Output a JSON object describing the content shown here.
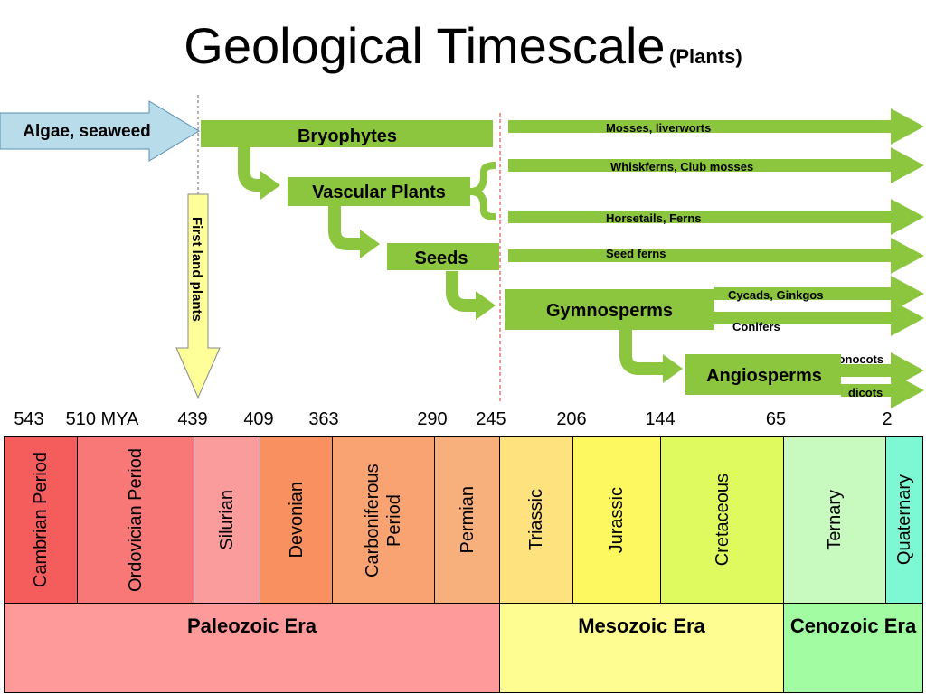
{
  "title": "Geological Timescale",
  "subtitle": "(Plants)",
  "algae": "Algae, seaweed",
  "first_land": "First land plants",
  "groups": [
    "Bryophytes",
    "Vascular Plants",
    "Seeds",
    "Gymnosperms",
    "Angiosperms"
  ],
  "lineages": [
    "Mosses, liverworts",
    "Whiskferns, Club mosses",
    "Horsetails, Ferns",
    "Seed ferns",
    "Cycads, Ginkgos",
    "Conifers",
    "monocots",
    "dicots"
  ],
  "times": [
    "543",
    "510 MYA",
    "439",
    "409",
    "363",
    "290",
    "245",
    "206",
    "144",
    "65",
    "2"
  ],
  "periods": [
    "Cambrian Period",
    "Ordovician Period",
    "Silurian",
    "Devonian",
    "Carboniferous Period",
    "Permian",
    "Triassic",
    "Jurassic",
    "Cretaceous",
    "Ternary",
    "Quaternary"
  ],
  "eras": [
    "Paleozoic Era",
    "Mesozoic Era",
    "Cenozoic Era"
  ]
}
